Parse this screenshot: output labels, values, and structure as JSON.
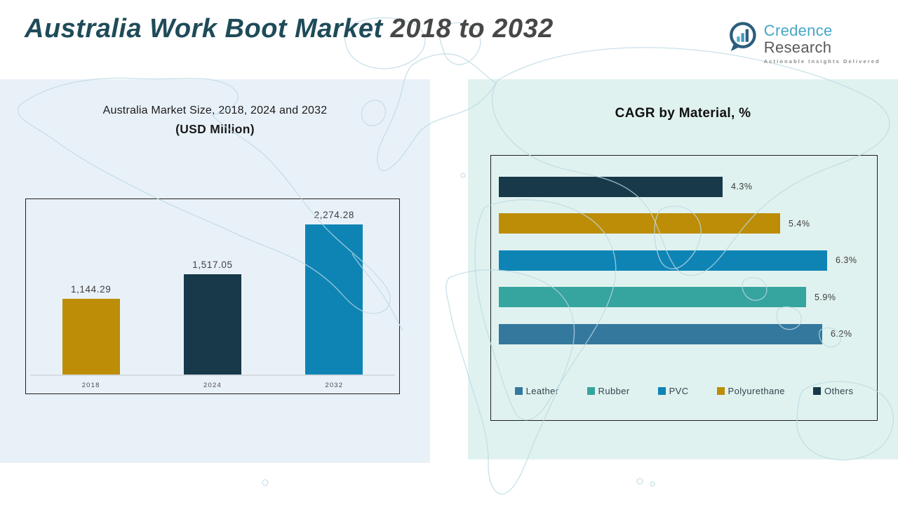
{
  "header": {
    "title_primary": "Australia Work Boot Market",
    "title_secondary": " 2018 to 2032",
    "logo": {
      "brand_primary": "Credence",
      "brand_secondary": " Research",
      "tagline": "Actionable Insights Delivered",
      "icon": "bar-chart-bubble-icon",
      "brand_primary_color": "#45A7C6",
      "brand_secondary_color": "#58595B"
    }
  },
  "left_panel": {
    "title_line1": "Australia Market Size, 2018, 2024 and 2032",
    "title_line2": "(USD Million)",
    "background_color": "#E9F1F8"
  },
  "right_panel": {
    "title": "CAGR by Material, %",
    "background_color": "#E0F2EF"
  },
  "chart_data": [
    {
      "type": "bar",
      "orientation": "vertical",
      "title": "Australia Market Size, 2018, 2024 and 2032 (USD Million)",
      "categories": [
        "2018",
        "2024",
        "2032"
      ],
      "values": [
        1144.29,
        1517.05,
        2274.28
      ],
      "value_labels": [
        "1,144.29",
        "1,517.05",
        "2,274.28"
      ],
      "colors": [
        "#BD8D07",
        "#17394A",
        "#0E84B5"
      ],
      "xlabel": "",
      "ylabel": "",
      "ylim": [
        0,
        2400
      ],
      "grid": false,
      "legend_position": "none"
    },
    {
      "type": "bar",
      "orientation": "horizontal",
      "title": "CAGR by Material, %",
      "categories": [
        "Others",
        "Polyurethane",
        "PVC",
        "Rubber",
        "Leather"
      ],
      "values": [
        4.3,
        5.4,
        6.3,
        5.9,
        6.2
      ],
      "value_labels": [
        "4.3%",
        "5.4%",
        "6.3%",
        "5.9%",
        "6.2%"
      ],
      "colors": [
        "#17394A",
        "#BD8D07",
        "#0E84B5",
        "#36A49F",
        "#34789E"
      ],
      "xlabel": "",
      "ylabel": "",
      "xlim": [
        0,
        6.8
      ],
      "grid": false,
      "legend_position": "bottom",
      "legend": [
        {
          "label": "Leather",
          "color": "#34789E"
        },
        {
          "label": "Rubber",
          "color": "#36A49F"
        },
        {
          "label": "PVC",
          "color": "#0E84B5"
        },
        {
          "label": "Polyurethane",
          "color": "#BD8D07"
        },
        {
          "label": "Others",
          "color": "#17394A"
        }
      ]
    }
  ]
}
